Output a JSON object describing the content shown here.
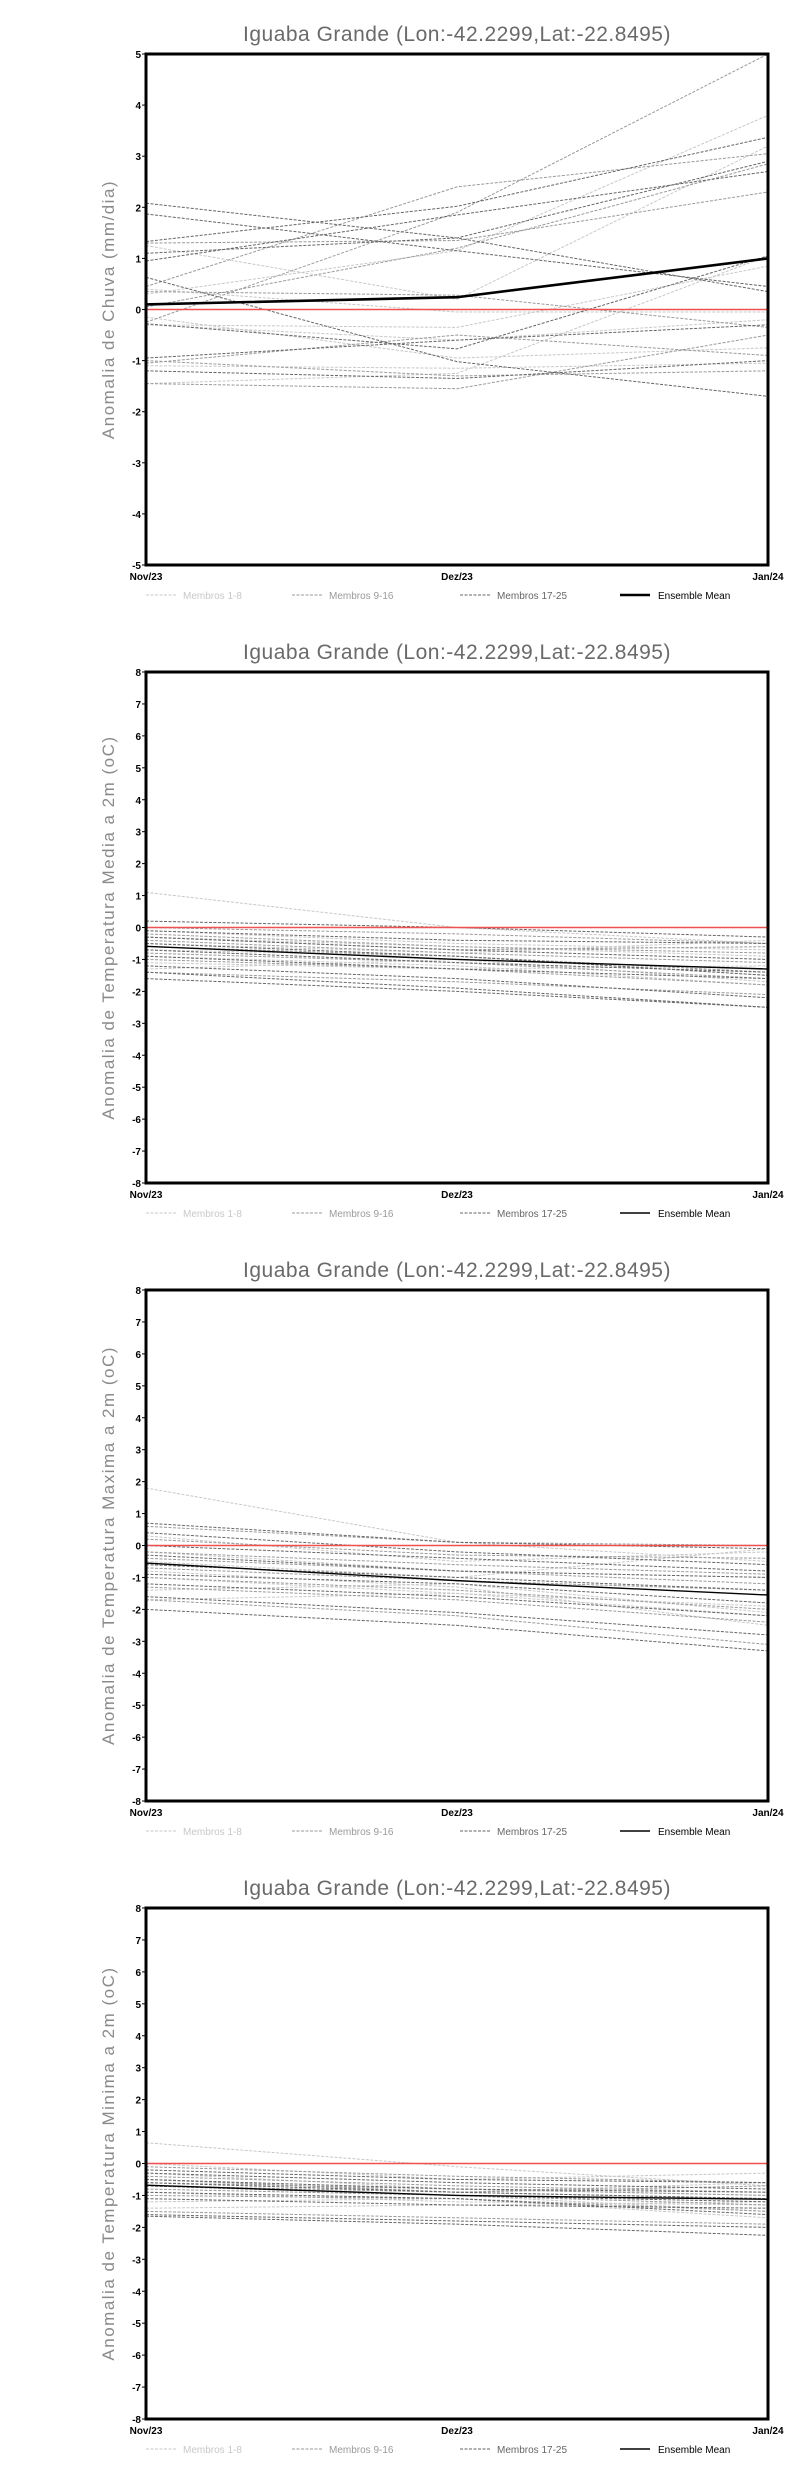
{
  "colors": {
    "membros_1_8": "#c8c8c8",
    "membros_9_16": "#9a9a9a",
    "membros_17_25": "#666666",
    "mean": "#000000",
    "zero_line": "#f05050"
  },
  "chart_data": [
    {
      "type": "line",
      "title": "Iguaba Grande (Lon:-42.2299,Lat:-22.8495)",
      "ylabel": "Anomalia de Chuva (mm/dia)",
      "xlabel": "",
      "categories": [
        "Nov/23",
        "Dez/23",
        "Jan/24"
      ],
      "ylim": [
        -5,
        5
      ],
      "yticks": [
        "-5",
        "-4",
        "-3",
        "-2",
        "-1",
        "0",
        "1",
        "2",
        "3",
        "4",
        "5"
      ],
      "legend": [
        "Membros 1-8",
        "Membros 9-16",
        "Membros 17-25",
        "Ensemble Mean"
      ],
      "legend_position": "bottom",
      "mean_bold": true,
      "ensemble_mean": [
        0.1,
        0.24,
        1.0
      ],
      "members_1_8": [
        [
          0.3,
          1.15,
          3.8
        ],
        [
          1.25,
          0.2,
          3.2
        ],
        [
          -0.3,
          -0.35,
          0.85
        ],
        [
          0.4,
          -0.05,
          -0.05
        ],
        [
          -0.15,
          -0.95,
          -0.75
        ],
        [
          -1.1,
          -1.15,
          -1.05
        ],
        [
          -1.45,
          -1.25,
          1.05
        ],
        [
          -0.3,
          -0.6,
          -0.2
        ]
      ],
      "members_9_16": [
        [
          -0.25,
          1.9,
          5.0
        ],
        [
          0.45,
          2.4,
          3.05
        ],
        [
          1.3,
          1.35,
          2.3
        ],
        [
          -1.05,
          -0.5,
          -0.9
        ],
        [
          -1.0,
          -1.3,
          -1.2
        ],
        [
          0.35,
          0.28,
          -0.35
        ],
        [
          -1.45,
          -1.55,
          -0.5
        ],
        [
          0.05,
          1.2,
          2.85
        ]
      ],
      "members_17_25": [
        [
          0.63,
          -1.02,
          -1.7
        ],
        [
          -0.28,
          -0.77,
          1.05
        ],
        [
          1.33,
          2.02,
          3.37
        ],
        [
          1.1,
          1.4,
          2.9
        ],
        [
          0.95,
          1.85,
          2.7
        ],
        [
          -0.95,
          -0.6,
          -0.3
        ],
        [
          -1.2,
          -1.35,
          -1.0
        ],
        [
          2.08,
          1.4,
          0.35
        ],
        [
          1.87,
          1.15,
          0.45
        ]
      ]
    },
    {
      "type": "line",
      "title": "Iguaba Grande (Lon:-42.2299,Lat:-22.8495)",
      "ylabel": "Anomalia de Temperatura Media a 2m (oC)",
      "xlabel": "",
      "categories": [
        "Nov/23",
        "Dez/23",
        "Jan/24"
      ],
      "ylim": [
        -8,
        8
      ],
      "yticks": [
        "-8",
        "-7",
        "-6",
        "-5",
        "-4",
        "-3",
        "-2",
        "-1",
        "0",
        "1",
        "2",
        "3",
        "4",
        "5",
        "6",
        "7",
        "8"
      ],
      "legend": [
        "Membros 1-8",
        "Membros 9-16",
        "Membros 17-25",
        "Ensemble Mean"
      ],
      "legend_position": "bottom",
      "mean_bold": false,
      "ensemble_mean": [
        -0.59,
        -1.0,
        -1.3
      ],
      "members_1_8": [
        [
          1.1,
          0.0,
          -0.5
        ],
        [
          -0.3,
          -0.6,
          -0.9
        ],
        [
          -1.3,
          -1.0,
          -1.7
        ],
        [
          -0.5,
          -0.8,
          -0.4
        ],
        [
          -0.9,
          -1.2,
          -1.8
        ],
        [
          -0.1,
          -0.5,
          -0.7
        ],
        [
          -0.7,
          -0.9,
          -1.5
        ],
        [
          -1.1,
          -1.3,
          -1.2
        ]
      ],
      "members_9_16": [
        [
          0.0,
          -0.2,
          -0.5
        ],
        [
          -0.2,
          -0.6,
          -0.8
        ],
        [
          -0.4,
          -0.8,
          -1.1
        ],
        [
          -0.6,
          -0.9,
          -1.4
        ],
        [
          -0.8,
          -1.1,
          -1.6
        ],
        [
          -1.0,
          -1.3,
          -1.8
        ],
        [
          -0.3,
          -0.7,
          -0.6
        ],
        [
          -1.4,
          -1.7,
          -2.1
        ]
      ],
      "members_17_25": [
        [
          0.2,
          0.0,
          -0.3
        ],
        [
          -0.1,
          -0.4,
          -0.5
        ],
        [
          -0.3,
          -0.7,
          -1.0
        ],
        [
          -0.5,
          -0.9,
          -1.5
        ],
        [
          -0.7,
          -1.1,
          -1.4
        ],
        [
          -0.9,
          -1.3,
          -1.6
        ],
        [
          -1.2,
          -1.6,
          -2.2
        ],
        [
          -1.4,
          -1.9,
          -2.5
        ],
        [
          -1.6,
          -2.0,
          -2.5
        ]
      ]
    },
    {
      "type": "line",
      "title": "Iguaba Grande (Lon:-42.2299,Lat:-22.8495)",
      "ylabel": "Anomalia de Temperatura Maxima a 2m (oC)",
      "xlabel": "",
      "categories": [
        "Nov/23",
        "Dez/23",
        "Jan/24"
      ],
      "ylim": [
        -8,
        8
      ],
      "yticks": [
        "-8",
        "-7",
        "-6",
        "-5",
        "-4",
        "-3",
        "-2",
        "-1",
        "0",
        "1",
        "2",
        "3",
        "4",
        "5",
        "6",
        "7",
        "8"
      ],
      "legend": [
        "Membros 1-8",
        "Membros 9-16",
        "Membros 17-25",
        "Ensemble Mean"
      ],
      "legend_position": "bottom",
      "mean_bold": false,
      "ensemble_mean": [
        -0.55,
        -1.1,
        -1.55
      ],
      "members_1_8": [
        [
          1.8,
          0.1,
          -0.5
        ],
        [
          0.3,
          -0.5,
          -0.2
        ],
        [
          -1.4,
          -1.2,
          -2.1
        ],
        [
          -0.5,
          -1.0,
          -0.1
        ],
        [
          -1.0,
          -1.5,
          -2.2
        ],
        [
          -0.2,
          -0.8,
          -1.0
        ],
        [
          -0.8,
          -1.3,
          -2.5
        ],
        [
          -1.7,
          -1.5,
          -1.9
        ]
      ],
      "members_9_16": [
        [
          0.6,
          0.1,
          0.0
        ],
        [
          0.2,
          -0.3,
          -0.4
        ],
        [
          -0.2,
          -0.6,
          -0.9
        ],
        [
          -0.4,
          -0.8,
          -1.2
        ],
        [
          -0.7,
          -1.1,
          -1.4
        ],
        [
          -1.0,
          -1.4,
          -2.0
        ],
        [
          -1.3,
          -1.7,
          -2.4
        ],
        [
          -1.7,
          -2.2,
          -3.1
        ]
      ],
      "members_17_25": [
        [
          0.7,
          0.1,
          -0.1
        ],
        [
          0.4,
          -0.2,
          -0.6
        ],
        [
          0.0,
          -0.4,
          -0.8
        ],
        [
          -0.3,
          -0.8,
          -1.0
        ],
        [
          -0.6,
          -1.0,
          -1.4
        ],
        [
          -0.9,
          -1.2,
          -1.8
        ],
        [
          -1.2,
          -1.6,
          -2.2
        ],
        [
          -1.6,
          -2.1,
          -2.8
        ],
        [
          -2.0,
          -2.5,
          -3.3
        ]
      ]
    },
    {
      "type": "line",
      "title": "Iguaba Grande (Lon:-42.2299,Lat:-22.8495)",
      "ylabel": "Anomalia de Temperatura Minima a 2m (oC)",
      "xlabel": "",
      "categories": [
        "Nov/23",
        "Dez/23",
        "Jan/24"
      ],
      "ylim": [
        -8,
        8
      ],
      "yticks": [
        "-8",
        "-7",
        "-6",
        "-5",
        "-4",
        "-3",
        "-2",
        "-1",
        "0",
        "1",
        "2",
        "3",
        "4",
        "5",
        "6",
        "7",
        "8"
      ],
      "legend": [
        "Membros 1-8",
        "Membros 9-16",
        "Membros 17-25",
        "Ensemble Mean"
      ],
      "legend_position": "bottom",
      "mean_bold": false,
      "ensemble_mean": [
        -0.68,
        -1.0,
        -1.12
      ],
      "members_1_8": [
        [
          0.65,
          -0.1,
          -0.7
        ],
        [
          0.0,
          -0.5,
          -0.3
        ],
        [
          -1.2,
          -1.1,
          -1.7
        ],
        [
          -0.5,
          -0.9,
          -0.6
        ],
        [
          -0.9,
          -1.2,
          -1.3
        ],
        [
          -0.3,
          -0.8,
          -1.0
        ],
        [
          -0.7,
          -1.0,
          -1.5
        ],
        [
          -1.4,
          -1.3,
          -1.2
        ]
      ],
      "members_9_16": [
        [
          -0.1,
          -0.4,
          -0.6
        ],
        [
          -0.4,
          -0.7,
          -0.9
        ],
        [
          -0.6,
          -0.8,
          -1.0
        ],
        [
          -0.7,
          -0.9,
          -1.1
        ],
        [
          -0.8,
          -1.0,
          -1.3
        ],
        [
          -1.0,
          -1.1,
          -1.5
        ],
        [
          -1.5,
          -1.7,
          -1.9
        ],
        [
          -0.5,
          -0.9,
          -0.7
        ]
      ],
      "members_17_25": [
        [
          -0.2,
          -0.5,
          -0.6
        ],
        [
          -0.3,
          -0.6,
          -0.8
        ],
        [
          -0.5,
          -0.8,
          -0.9
        ],
        [
          -0.6,
          -0.9,
          -1.1
        ],
        [
          -0.7,
          -1.0,
          -1.2
        ],
        [
          -0.9,
          -1.1,
          -1.6
        ],
        [
          -1.1,
          -1.3,
          -1.4
        ],
        [
          -1.6,
          -1.8,
          -2.0
        ],
        [
          -1.65,
          -1.9,
          -2.25
        ]
      ]
    }
  ]
}
